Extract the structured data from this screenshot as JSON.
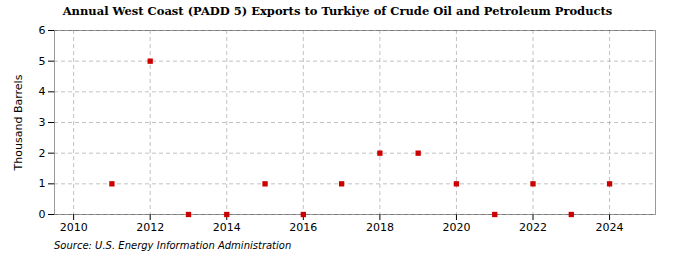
{
  "chart_data": {
    "type": "scatter",
    "title": "Annual West Coast (PADD 5) Exports to Turkiye of Crude Oil and Petroleum Products",
    "ylabel": "Thousand Barrels",
    "source": "Source: U.S. Energy Information Administration",
    "x": [
      2011,
      2012,
      2013,
      2014,
      2015,
      2016,
      2017,
      2018,
      2019,
      2020,
      2021,
      2022,
      2023,
      2024
    ],
    "values": [
      1,
      5,
      0,
      0,
      1,
      0,
      1,
      2,
      2,
      1,
      0,
      1,
      0,
      1
    ],
    "color": "#cc0000",
    "marker": "square",
    "xlim": [
      2009.5,
      2025.2
    ],
    "xticks": [
      2010,
      2012,
      2014,
      2016,
      2018,
      2020,
      2022,
      2024
    ],
    "ylim": [
      0,
      6
    ],
    "yticks": [
      0,
      1,
      2,
      3,
      4,
      5,
      6
    ],
    "grid": true
  }
}
